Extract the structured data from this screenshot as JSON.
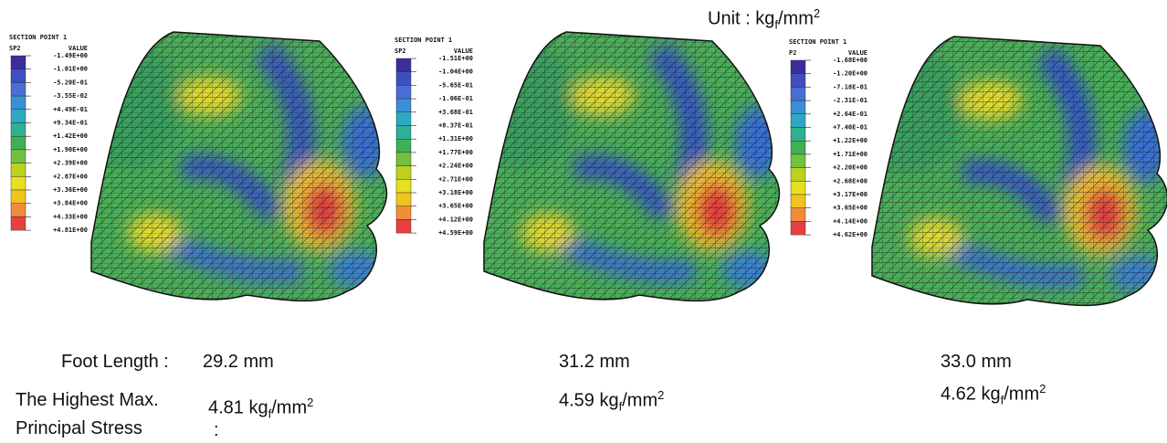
{
  "unit_label": "Unit :",
  "unit": {
    "base": "kg",
    "sub": "f",
    "per": "/mm",
    "sup": "2"
  },
  "labels": {
    "foot_length": "Foot Length :",
    "stress_line1": "The Highest Max.",
    "stress_line2": "Principal Stress",
    "stress_colon": ":"
  },
  "panels": [
    {
      "legend": {
        "section": "SECTION POINT 1",
        "variable": "SP2",
        "header": "VALUE",
        "values": [
          "-1.49E+00",
          "-1.01E+00",
          "-5.20E-01",
          "-3.55E-02",
          "+4.49E-01",
          "+9.34E-01",
          "+1.42E+00",
          "+1.90E+00",
          "+2.39E+00",
          "+2.87E+00",
          "+3.36E+00",
          "+3.84E+00",
          "+4.33E+00",
          "+4.81E+00"
        ]
      },
      "foot_length": "29.2 mm",
      "max_stress": "4.81"
    },
    {
      "legend": {
        "section": "SECTION POINT 1",
        "variable": "SP2",
        "header": "VALUE",
        "values": [
          "-1.51E+00",
          "-1.04E+00",
          "-5.65E-01",
          "-1.06E-01",
          "+3.68E-01",
          "+8.37E-01",
          "+1.31E+00",
          "+1.77E+00",
          "+2.24E+00",
          "+2.71E+00",
          "+3.18E+00",
          "+3.65E+00",
          "+4.12E+00",
          "+4.59E+00"
        ]
      },
      "foot_length": "31.2 mm",
      "max_stress": "4.59"
    },
    {
      "legend": {
        "section": "SECTION POINT 1",
        "variable": "P2",
        "header": "VALUE",
        "values": [
          "-1.68E+00",
          "-1.20E+00",
          "-7.18E-01",
          "-2.31E-01",
          "+2.64E-01",
          "+7.40E-01",
          "+1.22E+00",
          "+1.71E+00",
          "+2.20E+00",
          "+2.68E+00",
          "+3.17E+00",
          "+3.65E+00",
          "+4.14E+00",
          "+4.62E+00"
        ]
      },
      "foot_length": "33.0 mm",
      "max_stress": "4.62"
    }
  ]
}
